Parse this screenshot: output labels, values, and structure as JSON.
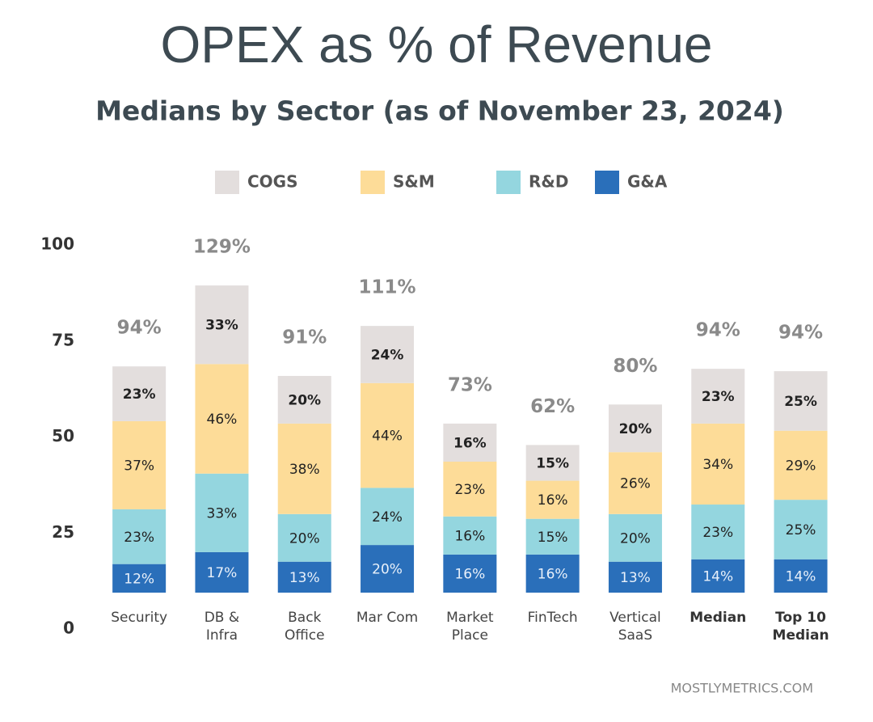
{
  "chart_data": {
    "type": "stacked_bar",
    "title": "OPEX as % of Revenue",
    "subtitle": "Medians by Sector (as of November 23, 2024)",
    "categories": [
      "Security",
      "DB & Infra",
      "Back Office",
      "Mar Com",
      "Market Place",
      "FinTech",
      "Vertical SaaS",
      "Median",
      "Top 10 Median"
    ],
    "highlight": [
      "Median",
      "Top 10 Median"
    ],
    "ylim": [
      0,
      100
    ],
    "yticks": [
      0,
      25,
      50,
      75,
      100
    ],
    "y2lim": [
      0,
      146
    ],
    "legend": "top",
    "series": [
      {
        "name": "G&A",
        "color": "#2a6fba",
        "axis": "y2",
        "values": [
          12,
          17,
          13,
          20,
          16,
          16,
          13,
          14,
          14
        ],
        "value_labels": [
          "12%",
          "17%",
          "13%",
          "20%",
          "16%",
          "16%",
          "13%",
          "14%",
          "14%"
        ]
      },
      {
        "name": "R&D",
        "color": "#94d6df",
        "axis": "y2",
        "values": [
          23,
          33,
          20,
          24,
          16,
          15,
          20,
          23,
          25
        ],
        "value_labels": [
          "23%",
          "33%",
          "20%",
          "24%",
          "16%",
          "15%",
          "20%",
          "23%",
          "25%"
        ]
      },
      {
        "name": "S&M",
        "color": "#fddc98",
        "axis": "y2",
        "values": [
          37,
          46,
          38,
          44,
          23,
          16,
          26,
          34,
          29
        ],
        "value_labels": [
          "37%",
          "46%",
          "38%",
          "44%",
          "23%",
          "16%",
          "26%",
          "34%",
          "29%"
        ]
      },
      {
        "name": "COGS",
        "color": "#e3dedd",
        "axis": "y2",
        "values": [
          23,
          33,
          20,
          24,
          16,
          15,
          20,
          23,
          25
        ],
        "value_labels": [
          "23%",
          "33%",
          "20%",
          "24%",
          "16%",
          "15%",
          "20%",
          "23%",
          "25%"
        ]
      }
    ],
    "totals": {
      "values": [
        94,
        129,
        91,
        111,
        73,
        62,
        80,
        94,
        94
      ],
      "value_labels": [
        "94%",
        "129%",
        "91%",
        "111%",
        "73%",
        "62%",
        "80%",
        "94%",
        "94%"
      ]
    },
    "source": "MOSTLYMETRICS.COM"
  }
}
